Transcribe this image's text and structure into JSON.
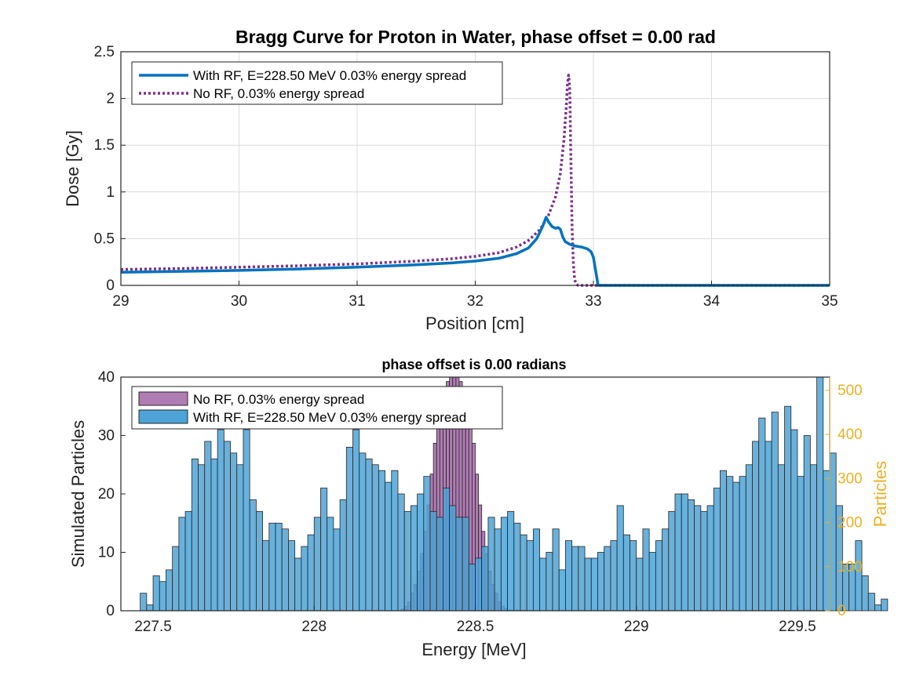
{
  "colors": {
    "with_rf": "#0072bd",
    "no_rf_line": "#7e2f8e",
    "no_rf_bar": "#b07cb4",
    "rf_bar": "#4da3d6",
    "right_axis": "#edb120"
  },
  "chart_data": [
    {
      "type": "line",
      "title": "Bragg Curve for Proton in Water, phase offset = 0.00 rad",
      "xlabel": "Position [cm]",
      "ylabel": "Dose [Gy]",
      "xlim": [
        29,
        35
      ],
      "ylim": [
        0,
        2.5
      ],
      "xticks": [
        "29",
        "30",
        "31",
        "32",
        "33",
        "34",
        "35"
      ],
      "yticks": [
        "0",
        "0.5",
        "1",
        "1.5",
        "2",
        "2.5"
      ],
      "grid": true,
      "legend_position": "top-left",
      "series": [
        {
          "name": "With RF, E=228.50 MeV 0.03% energy spread",
          "style": "solid",
          "x": [
            29.0,
            29.5,
            30.0,
            30.5,
            31.0,
            31.5,
            31.8,
            32.0,
            32.2,
            32.35,
            32.45,
            32.52,
            32.57,
            32.6,
            32.62,
            32.65,
            32.68,
            32.7,
            32.72,
            32.74,
            32.76,
            32.8,
            32.85,
            32.9,
            32.95,
            32.98,
            33.0,
            33.02,
            33.04,
            33.1,
            34.0,
            35.0
          ],
          "y": [
            0.14,
            0.15,
            0.16,
            0.175,
            0.195,
            0.22,
            0.24,
            0.26,
            0.29,
            0.34,
            0.4,
            0.5,
            0.63,
            0.73,
            0.68,
            0.63,
            0.61,
            0.62,
            0.6,
            0.52,
            0.47,
            0.44,
            0.42,
            0.41,
            0.39,
            0.36,
            0.3,
            0.15,
            0.0,
            0.0,
            0.0,
            0.0
          ]
        },
        {
          "name": "No RF, 0.03% energy spread",
          "style": "dotted",
          "x": [
            29.0,
            29.5,
            30.0,
            30.5,
            31.0,
            31.5,
            31.8,
            32.0,
            32.2,
            32.35,
            32.45,
            32.55,
            32.62,
            32.68,
            32.72,
            32.75,
            32.77,
            32.78,
            32.79,
            32.8,
            32.81,
            32.82,
            32.83,
            32.84,
            32.85,
            32.87,
            33.0,
            35.0
          ],
          "y": [
            0.17,
            0.18,
            0.195,
            0.21,
            0.23,
            0.26,
            0.285,
            0.31,
            0.35,
            0.41,
            0.48,
            0.6,
            0.75,
            0.95,
            1.2,
            1.55,
            1.9,
            2.15,
            2.25,
            2.1,
            1.3,
            0.6,
            0.25,
            0.08,
            0.02,
            0.0,
            0.0,
            0.0
          ]
        }
      ]
    },
    {
      "type": "bar",
      "title": "phase offset is 0.00 radians",
      "xlabel": "Energy [MeV]",
      "ylabel": "Simulated Particles",
      "ylabel_right": "Particles",
      "xlim": [
        227.4,
        229.6
      ],
      "ylim": [
        0,
        40
      ],
      "ylim_right": [
        0,
        530
      ],
      "xticks": [
        "227.5",
        "228",
        "228.5",
        "229",
        "229.5"
      ],
      "yticks": [
        "0",
        "10",
        "20",
        "30",
        "40"
      ],
      "yticks_right": [
        "0",
        "100",
        "200",
        "300",
        "400",
        "500"
      ],
      "grid": false,
      "legend_position": "top-left",
      "series": [
        {
          "name": "No RF, 0.03% energy spread",
          "axis": "right",
          "bin_start": 228.27,
          "bin_width": 0.01,
          "values": [
            4,
            10,
            20,
            40,
            60,
            90,
            130,
            180,
            240,
            310,
            380,
            430,
            470,
            500,
            520,
            530,
            540,
            530,
            520,
            500,
            470,
            430,
            380,
            310,
            240,
            180,
            130,
            90,
            60,
            40,
            20,
            10,
            5,
            2,
            1,
            1,
            1,
            1,
            1
          ]
        },
        {
          "name": "With RF, E=228.50 MeV 0.03% energy spread",
          "axis": "left",
          "bin_start": 227.46,
          "bin_width": 0.02,
          "values": [
            3,
            1,
            6,
            5,
            7,
            11,
            16,
            17,
            26,
            25,
            29,
            26,
            31,
            29,
            27,
            25,
            31,
            19,
            17,
            12,
            15,
            15,
            14,
            12,
            9,
            11,
            13,
            16,
            21,
            16,
            14,
            19,
            28,
            31,
            27,
            26,
            25,
            24,
            22,
            24,
            20,
            17,
            18,
            20,
            23,
            17,
            16,
            21,
            18,
            16,
            16,
            8,
            9,
            11,
            16,
            14,
            16,
            17,
            15,
            13,
            12,
            14,
            9,
            10,
            14,
            7,
            12,
            11,
            11,
            9,
            9,
            10,
            11,
            12,
            18,
            13,
            12,
            9,
            14,
            10,
            12,
            14,
            17,
            20,
            20,
            19,
            18,
            17,
            18,
            21,
            24,
            23,
            22,
            23,
            25,
            29,
            33,
            29,
            34,
            25,
            35,
            31,
            23,
            30,
            25,
            40,
            24,
            27,
            18,
            8,
            8,
            12,
            6,
            3,
            1,
            2
          ]
        }
      ]
    }
  ]
}
